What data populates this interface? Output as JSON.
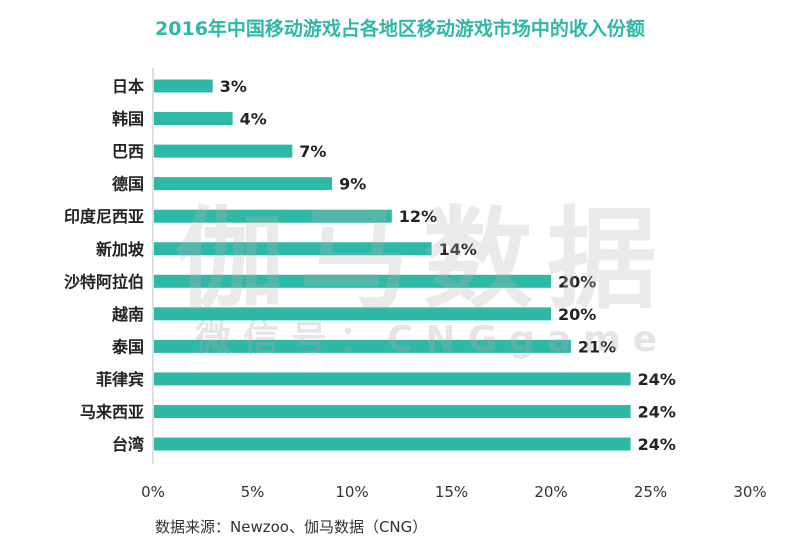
{
  "chart_data": {
    "type": "bar",
    "orientation": "horizontal",
    "title": "2016年中国移动游戏占各地区移动游戏市场中的收入份额",
    "categories": [
      "日本",
      "韩国",
      "巴西",
      "德国",
      "印度尼西亚",
      "新加坡",
      "沙特阿拉伯",
      "越南",
      "泰国",
      "菲律宾",
      "马来西亚",
      "台湾"
    ],
    "values": [
      3,
      4,
      7,
      9,
      12,
      14,
      20,
      20,
      21,
      24,
      24,
      24
    ],
    "value_labels": [
      "3%",
      "4%",
      "7%",
      "9%",
      "12%",
      "14%",
      "20%",
      "20%",
      "21%",
      "24%",
      "24%",
      "24%"
    ],
    "xlim": [
      0,
      30
    ],
    "x_ticks": [
      0,
      5,
      10,
      15,
      20,
      25,
      30
    ],
    "x_tick_labels": [
      "0%",
      "5%",
      "10%",
      "15%",
      "20%",
      "25%",
      "30%"
    ],
    "grid": false,
    "bar_color": "#2eb8a6"
  },
  "source_text": "数据来源：Newzoo、伽马数据（CNG）",
  "watermark": {
    "main": "伽马数据",
    "sub": "微信号：CNGgame"
  }
}
